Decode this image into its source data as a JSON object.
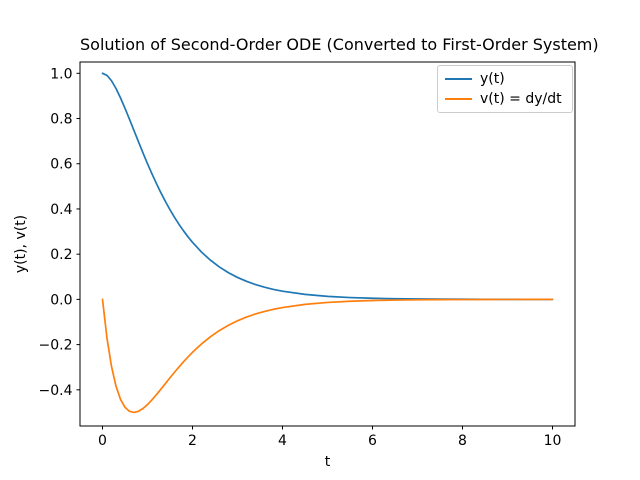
{
  "figure": {
    "title": "Solution of Second-Order ODE (Converted to First-Order System)",
    "background_color": "#ffffff",
    "text_color": "#000000"
  },
  "axes": {
    "xlabel": "t",
    "ylabel": "y(t), v(t)",
    "x_ticks": [
      0,
      2,
      4,
      6,
      8,
      10
    ],
    "x_tick_labels": [
      "0",
      "2",
      "4",
      "6",
      "8",
      "10"
    ],
    "y_ticks": [
      1.0,
      0.8,
      0.6,
      0.4,
      0.2,
      0.0,
      -0.2,
      -0.4
    ],
    "y_tick_labels": [
      "1.0",
      "0.8",
      "0.6",
      "0.4",
      "0.2",
      "0.0",
      "−0.2",
      "−0.4"
    ],
    "spine_color": "#000000",
    "tick_color": "#000000"
  },
  "legend": {
    "position": "upper right",
    "border_color": "#cccccc",
    "entries": [
      {
        "label": "y(t)",
        "color": "#1f77b4"
      },
      {
        "label": "v(t) = dy/dt",
        "color": "#ff7f0e"
      }
    ]
  },
  "chart_data": {
    "type": "line",
    "title": "Solution of Second-Order ODE (Converted to First-Order System)",
    "xlabel": "t",
    "ylabel": "y(t), v(t)",
    "xlim": [
      -0.5,
      10.5
    ],
    "ylim": [
      -0.56,
      1.05
    ],
    "grid": false,
    "legend_position": "upper right",
    "line_width": 1.7,
    "x": [
      0,
      0.1,
      0.2,
      0.3,
      0.4,
      0.5,
      0.6,
      0.7,
      0.8,
      0.9,
      1.0,
      1.1,
      1.2,
      1.3,
      1.4,
      1.5,
      1.6,
      1.7,
      1.8,
      1.9,
      2.0,
      2.2,
      2.4,
      2.6,
      2.8,
      3.0,
      3.2,
      3.4,
      3.6,
      3.8,
      4.0,
      4.5,
      5.0,
      5.5,
      6.0,
      6.5,
      7.0,
      7.5,
      8.0,
      8.5,
      9.0,
      9.5,
      10.0
    ],
    "series": [
      {
        "name": "y(t)",
        "color": "#1f77b4",
        "values": [
          1.0,
          0.9909,
          0.9671,
          0.9328,
          0.8913,
          0.8452,
          0.7964,
          0.7466,
          0.6968,
          0.6478,
          0.6004,
          0.5549,
          0.5117,
          0.4708,
          0.4324,
          0.3965,
          0.363,
          0.332,
          0.3033,
          0.2768,
          0.2524,
          0.2093,
          0.1732,
          0.143,
          0.1179,
          0.0971,
          0.0799,
          0.0656,
          0.0539,
          0.0442,
          0.0363,
          0.0221,
          0.0134,
          0.0082,
          0.005,
          0.003,
          0.0018,
          0.0011,
          0.0007,
          0.0004,
          0.0002,
          0.0001,
          0.0001
        ]
      },
      {
        "name": "v(t) = dy/dt",
        "color": "#ff7f0e",
        "values": [
          0.0,
          -0.1722,
          -0.2968,
          -0.384,
          -0.442,
          -0.4773,
          -0.4952,
          -0.5,
          -0.4949,
          -0.4825,
          -0.4651,
          -0.4441,
          -0.421,
          -0.3965,
          -0.3716,
          -0.3467,
          -0.3223,
          -0.2986,
          -0.276,
          -0.2544,
          -0.234,
          -0.1971,
          -0.165,
          -0.1375,
          -0.1142,
          -0.0946,
          -0.0782,
          -0.0645,
          -0.0532,
          -0.0437,
          -0.036,
          -0.022,
          -0.0134,
          -0.0081,
          -0.0049,
          -0.003,
          -0.0018,
          -0.0011,
          -0.0007,
          -0.0004,
          -0.0002,
          -0.0001,
          -0.0001
        ]
      }
    ]
  }
}
